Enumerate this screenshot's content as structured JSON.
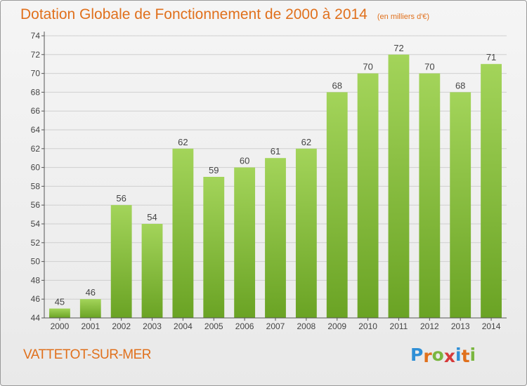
{
  "header": {
    "title": "Dotation Globale de Fonctionnement de 2000 à 2014",
    "subtitle": "(en milliers d'€)"
  },
  "footer": {
    "commune": "VATTETOT-SUR-MER",
    "logo_letters": [
      "P",
      "r",
      "o",
      "x",
      "i",
      "t",
      "i"
    ],
    "logo_colors": [
      "#2f8fd6",
      "#e0701c",
      "#7ab63f",
      "#d63a3a",
      "#2f8fd6",
      "#e0701c",
      "#7ab63f"
    ]
  },
  "chart_data": {
    "type": "bar",
    "title": "Dotation Globale de Fonctionnement de 2000 à 2014",
    "subtitle": "(en milliers d'€)",
    "categories": [
      "2000",
      "2001",
      "2002",
      "2003",
      "2004",
      "2005",
      "2006",
      "2007",
      "2008",
      "2009",
      "2010",
      "2011",
      "2012",
      "2013",
      "2014"
    ],
    "values": [
      45,
      46,
      56,
      54,
      62,
      59,
      60,
      61,
      62,
      68,
      70,
      72,
      70,
      68,
      71
    ],
    "value_labels": [
      "45",
      "46",
      "56",
      "54",
      "62",
      "59",
      "60",
      "61",
      "62",
      "68",
      "70",
      "72",
      "70",
      "68",
      "71"
    ],
    "ylim": [
      44,
      74
    ],
    "yticks": [
      "44",
      "46",
      "48",
      "50",
      "52",
      "54",
      "56",
      "58",
      "60",
      "62",
      "64",
      "66",
      "68",
      "70",
      "72",
      "74"
    ],
    "grid": true,
    "bar_color_light": "#a3d45a",
    "bar_color_dark": "#6aa324",
    "xlabel": "",
    "ylabel": ""
  }
}
